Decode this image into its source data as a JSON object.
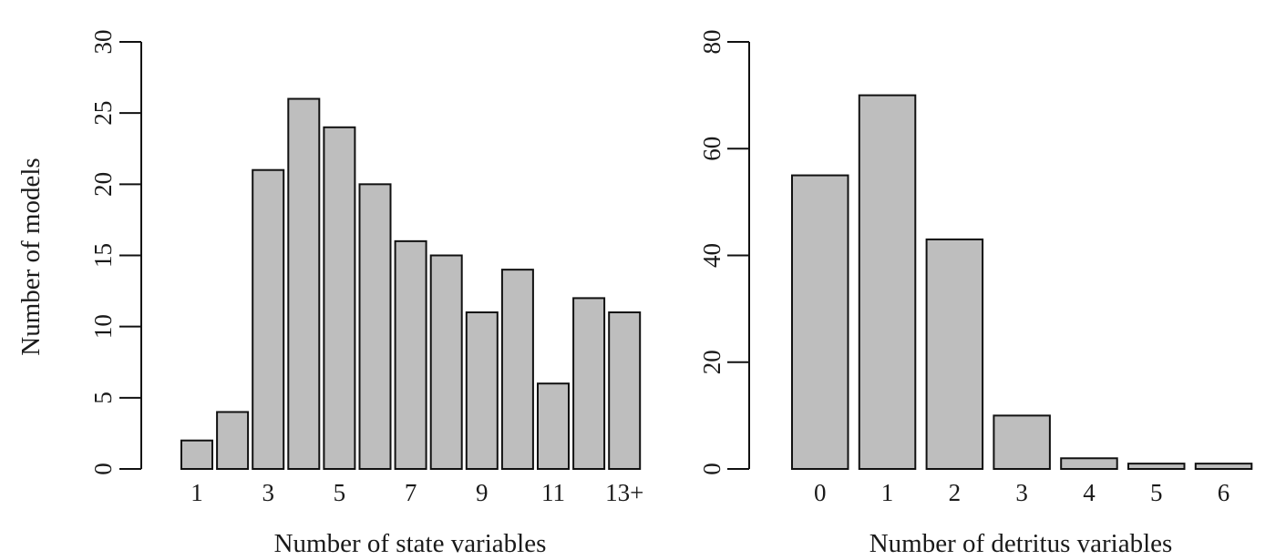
{
  "chart_data": [
    {
      "type": "bar",
      "categories": [
        "1",
        "2",
        "3",
        "4",
        "5",
        "6",
        "7",
        "8",
        "9",
        "10",
        "11",
        "12",
        "13+"
      ],
      "values": [
        2,
        4,
        21,
        26,
        24,
        20,
        16,
        15,
        11,
        14,
        6,
        12,
        11
      ],
      "xtick_labels": [
        "1",
        "3",
        "5",
        "7",
        "9",
        "11",
        "13+"
      ],
      "yticks": [
        0,
        5,
        10,
        15,
        20,
        25,
        30
      ],
      "ylim": [
        0,
        30
      ],
      "xlabel": "Number of state variables",
      "ylabel": "Number of models",
      "bar_color": "#bebebe",
      "grid": false
    },
    {
      "type": "bar",
      "categories": [
        "0",
        "1",
        "2",
        "3",
        "4",
        "5",
        "6"
      ],
      "values": [
        55,
        70,
        43,
        10,
        2,
        1,
        1
      ],
      "xtick_labels": [
        "0",
        "1",
        "2",
        "3",
        "4",
        "5",
        "6"
      ],
      "yticks": [
        0,
        20,
        40,
        60,
        80
      ],
      "ylim": [
        0,
        80
      ],
      "xlabel": "Number of detritus variables",
      "ylabel": "",
      "bar_color": "#bebebe",
      "grid": false
    }
  ]
}
